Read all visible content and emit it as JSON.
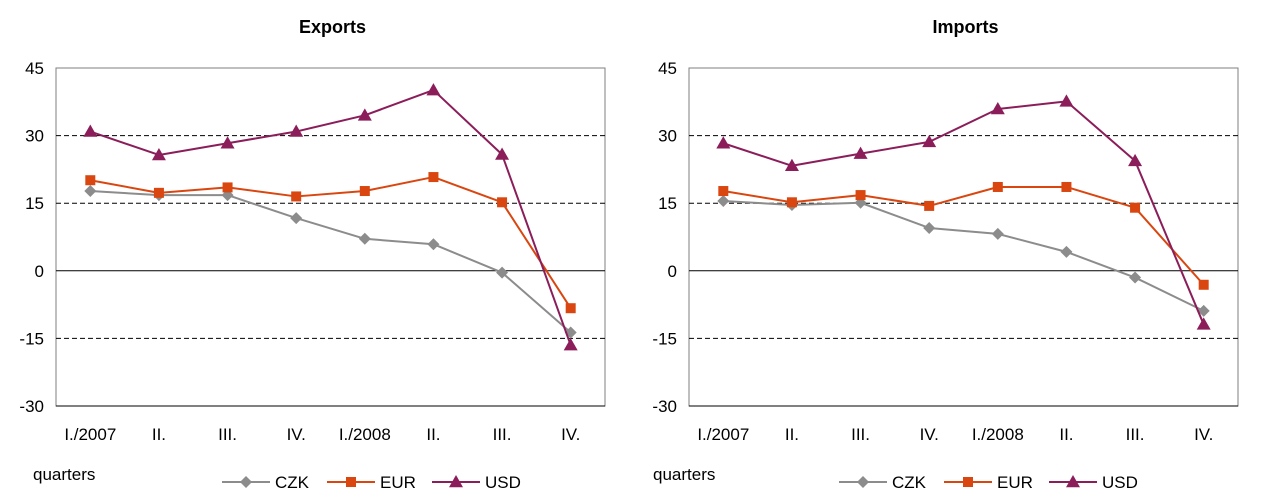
{
  "chart_data": [
    {
      "type": "line",
      "title": "Exports",
      "xlabel": "quarters",
      "ylabel": "",
      "categories": [
        "I./2007",
        "II.",
        "III.",
        "IV.",
        "I./2008",
        "II.",
        "III.",
        "IV."
      ],
      "ylim": [
        -30,
        45
      ],
      "yticks": [
        45,
        30,
        15,
        0,
        -15,
        -30
      ],
      "grid": "dashed horizontal",
      "legend": "bottom",
      "series": [
        {
          "name": "CZK",
          "color": "#8c8c8c",
          "marker": "diamond",
          "values": [
            17.7,
            16.8,
            16.8,
            11.7,
            7.1,
            5.9,
            -0.4,
            -13.7
          ]
        },
        {
          "name": "EUR",
          "color": "#d9460f",
          "marker": "square",
          "values": [
            20.1,
            17.3,
            18.5,
            16.5,
            17.7,
            20.8,
            15.2,
            -8.3
          ]
        },
        {
          "name": "USD",
          "color": "#8b1e5a",
          "marker": "triangle",
          "values": [
            30.9,
            25.7,
            28.3,
            30.9,
            34.5,
            40.1,
            25.8,
            -16.5
          ]
        }
      ]
    },
    {
      "type": "line",
      "title": "Imports",
      "xlabel": "quarters",
      "ylabel": "",
      "categories": [
        "I./2007",
        "II.",
        "III.",
        "IV.",
        "I./2008",
        "II.",
        "III.",
        "IV."
      ],
      "ylim": [
        -30,
        45
      ],
      "yticks": [
        45,
        30,
        15,
        0,
        -15,
        -30
      ],
      "grid": "dashed horizontal",
      "legend": "bottom",
      "series": [
        {
          "name": "CZK",
          "color": "#8c8c8c",
          "marker": "diamond",
          "values": [
            15.5,
            14.6,
            15.1,
            9.5,
            8.2,
            4.2,
            -1.5,
            -8.9
          ]
        },
        {
          "name": "EUR",
          "color": "#d9460f",
          "marker": "square",
          "values": [
            17.7,
            15.2,
            16.8,
            14.4,
            18.6,
            18.6,
            14.0,
            -3.1
          ]
        },
        {
          "name": "USD",
          "color": "#8b1e5a",
          "marker": "triangle",
          "values": [
            28.3,
            23.3,
            26.0,
            28.6,
            35.9,
            37.6,
            24.4,
            -11.9
          ]
        }
      ]
    }
  ]
}
